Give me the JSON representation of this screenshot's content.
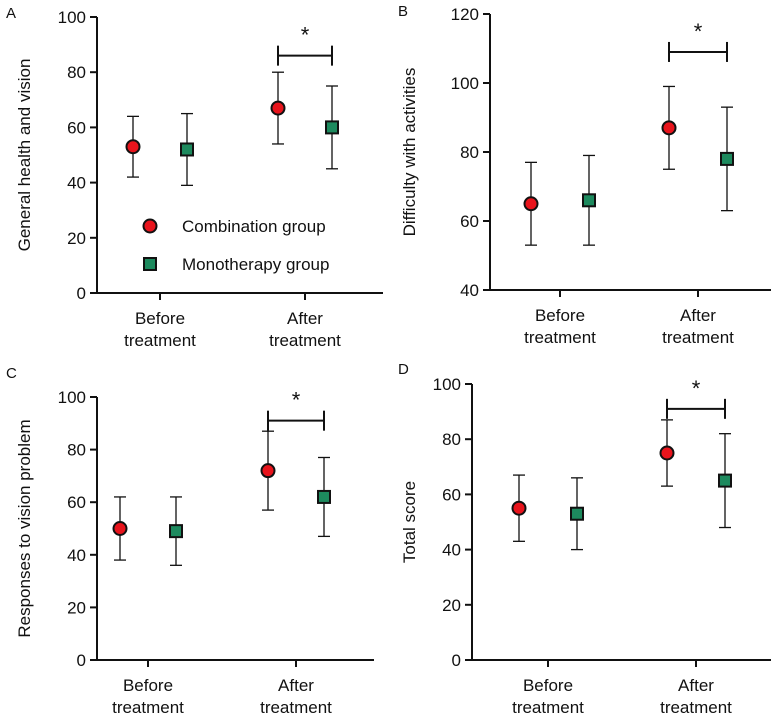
{
  "colors": {
    "combination": "#e8141c",
    "monotherapy": "#1d8a5e",
    "axis": "#111111"
  },
  "legend": {
    "combination_label": "Combination group",
    "monotherapy_label": "Monotherapy group"
  },
  "chart_data": [
    {
      "panel": "A",
      "type": "scatter",
      "ylabel": "General health and vision",
      "ylim": [
        0,
        100
      ],
      "yticks": [
        0,
        20,
        40,
        60,
        80,
        100
      ],
      "categories": [
        "Before\ntreatment",
        "After\ntreatment"
      ],
      "series": [
        {
          "name": "Combination group",
          "values": [
            53,
            67
          ],
          "lower": [
            42,
            54
          ],
          "upper": [
            64,
            80
          ]
        },
        {
          "name": "Monotherapy group",
          "values": [
            52,
            60
          ],
          "lower": [
            39,
            45
          ],
          "upper": [
            65,
            75
          ]
        }
      ],
      "significance": {
        "category": "After\ntreatment",
        "label": "*",
        "level": 86
      },
      "legend_shown": true
    },
    {
      "panel": "B",
      "type": "scatter",
      "ylabel": "Difficulty with activities",
      "ylim": [
        40,
        120
      ],
      "yticks": [
        40,
        60,
        80,
        100,
        120
      ],
      "categories": [
        "Before\ntreatment",
        "After\ntreatment"
      ],
      "series": [
        {
          "name": "Combination group",
          "values": [
            65,
            87
          ],
          "lower": [
            53,
            75
          ],
          "upper": [
            77,
            99
          ]
        },
        {
          "name": "Monotherapy group",
          "values": [
            66,
            78
          ],
          "lower": [
            53,
            63
          ],
          "upper": [
            79,
            93
          ]
        }
      ],
      "significance": {
        "category": "After\ntreatment",
        "label": "*",
        "level": 109
      },
      "legend_shown": false
    },
    {
      "panel": "C",
      "type": "scatter",
      "ylabel": "Responses to vision problem",
      "ylim": [
        0,
        100
      ],
      "yticks": [
        0,
        20,
        40,
        60,
        80,
        100
      ],
      "categories": [
        "Before\ntreatment",
        "After\ntreatment"
      ],
      "series": [
        {
          "name": "Combination group",
          "values": [
            50,
            72
          ],
          "lower": [
            38,
            57
          ],
          "upper": [
            62,
            87
          ]
        },
        {
          "name": "Monotherapy group",
          "values": [
            49,
            62
          ],
          "lower": [
            36,
            47
          ],
          "upper": [
            62,
            77
          ]
        }
      ],
      "significance": {
        "category": "After\ntreatment",
        "label": "*",
        "level": 91
      },
      "legend_shown": false
    },
    {
      "panel": "D",
      "type": "scatter",
      "ylabel": "Total score",
      "ylim": [
        0,
        100
      ],
      "yticks": [
        0,
        20,
        40,
        60,
        80,
        100
      ],
      "categories": [
        "Before\ntreatment",
        "After\ntreatment"
      ],
      "series": [
        {
          "name": "Combination group",
          "values": [
            55,
            75
          ],
          "lower": [
            43,
            63
          ],
          "upper": [
            67,
            87
          ]
        },
        {
          "name": "Monotherapy group",
          "values": [
            53,
            65
          ],
          "lower": [
            40,
            48
          ],
          "upper": [
            66,
            82
          ]
        }
      ],
      "significance": {
        "category": "After\ntreatment",
        "label": "*",
        "level": 91
      },
      "legend_shown": false
    }
  ]
}
